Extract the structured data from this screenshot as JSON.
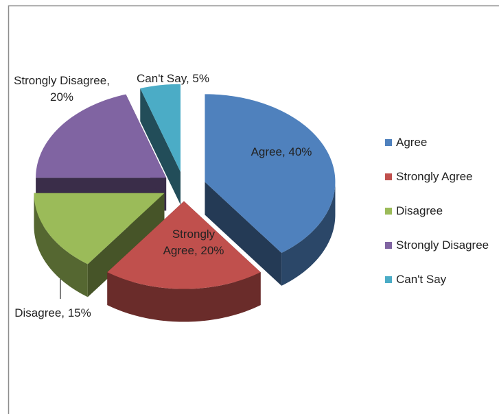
{
  "chart_data": {
    "type": "pie",
    "categories": [
      "Agree",
      "Strongly Agree",
      "Disagree",
      "Strongly Disagree",
      "Can't Say"
    ],
    "values": [
      40,
      20,
      15,
      20,
      5
    ],
    "value_labels": [
      "Agree, 40%",
      "Strongly Agree, 20%",
      "Disagree, 15%",
      "Strongly Disagree, 20%",
      "Can't Say, 5%"
    ],
    "colors": [
      "#4f81bd",
      "#c0504d",
      "#9bbb59",
      "#8064a2",
      "#4bacc6"
    ],
    "legend": "right"
  }
}
